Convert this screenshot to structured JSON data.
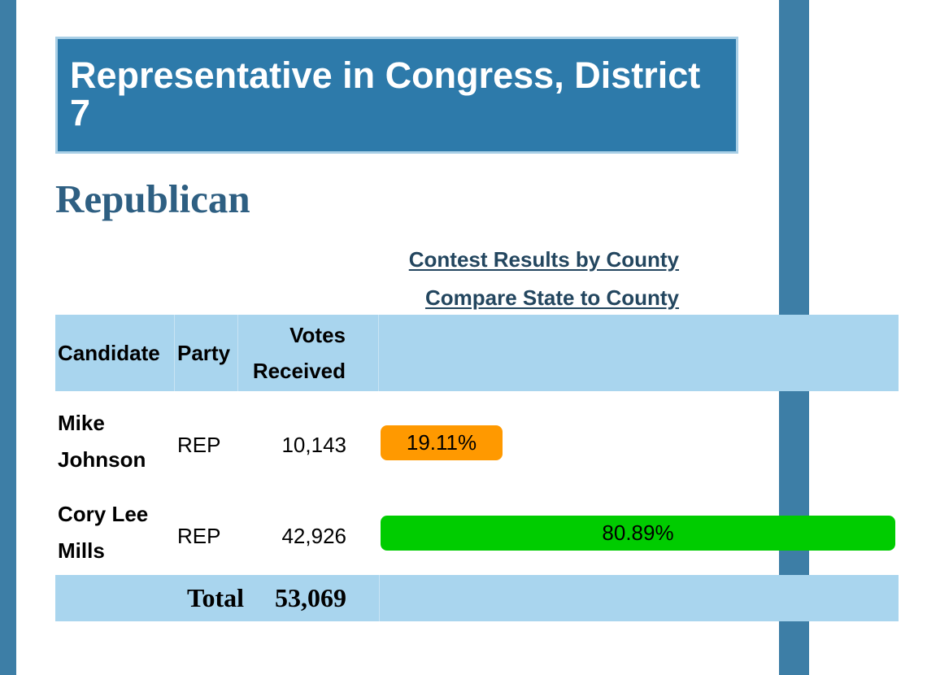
{
  "contest": {
    "title": "Representative in Congress, District 7",
    "party": "Republican"
  },
  "links": {
    "results_by_county": "Contest Results by County",
    "compare_state_county": "Compare State to County"
  },
  "table": {
    "headers": {
      "candidate": "Candidate",
      "party": "Party",
      "votes": "Votes Received"
    },
    "rows": [
      {
        "name": "Mike Johnson",
        "party": "REP",
        "votes": "10,143",
        "percent_label": "19.11%",
        "percent": 19.11,
        "bar_color": "#ff9900"
      },
      {
        "name": "Cory Lee Mills",
        "party": "REP",
        "votes": "42,926",
        "percent_label": "80.89%",
        "percent": 80.89,
        "bar_color": "#00cc00"
      }
    ],
    "total": {
      "label": "Total",
      "votes": "53,069"
    }
  },
  "colors": {
    "header_blue": "#2d7aaa",
    "rail_blue": "#3d7ea6",
    "table_band": "#a9d5ee",
    "party_heading": "#2e5f82"
  }
}
